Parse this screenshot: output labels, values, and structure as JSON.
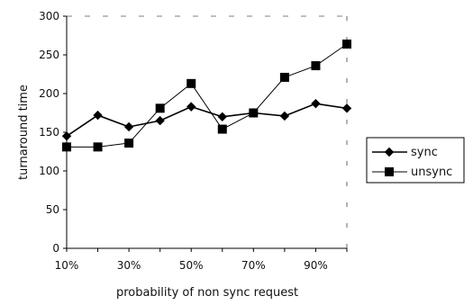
{
  "chart_data": {
    "type": "line",
    "title": "",
    "xlabel": "probability of non sync request",
    "ylabel": "turnaround time",
    "x": [
      "10%",
      "20%",
      "30%",
      "40%",
      "50%",
      "60%",
      "70%",
      "80%",
      "90%",
      "100%"
    ],
    "x_tick_labels": [
      "10%",
      "30%",
      "50%",
      "70%",
      "90%"
    ],
    "y_ticks": [
      0,
      50,
      100,
      150,
      200,
      250,
      300
    ],
    "ylim": [
      0,
      300
    ],
    "grid": false,
    "legend_position": "right",
    "series": [
      {
        "name": "sync",
        "marker": "diamond",
        "color": "#000000",
        "values": [
          145,
          172,
          157,
          165,
          183,
          170,
          175,
          171,
          187,
          181
        ]
      },
      {
        "name": "unsync",
        "marker": "square",
        "color": "#000000",
        "values": [
          131,
          131,
          136,
          181,
          213,
          154,
          175,
          221,
          236,
          264
        ]
      }
    ]
  }
}
